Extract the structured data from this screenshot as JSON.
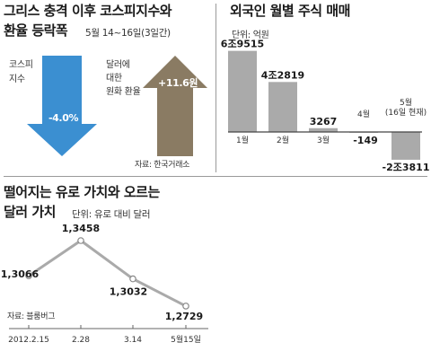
{
  "panel_a": {
    "title_line1": "그리스 충격 이후 코스피지수와",
    "title_line2": "환율 등락폭",
    "period": "5월 14~16일(3일간)",
    "left_label_line1": "코스피",
    "left_label_line2": "지수",
    "left_value": "-4.0%",
    "right_label_line1": "달러에",
    "right_label_line2": "대한",
    "right_label_line3": "원화 환율",
    "right_value": "+11.6원",
    "source": "자료: 한국거래소",
    "colors": {
      "down_arrow": "#3b8fd1",
      "up_arrow": "#8a7b63"
    }
  },
  "panel_b": {
    "title": "외국인 월별 주식 매매",
    "unit": "단위: 억원"
  },
  "panel_c": {
    "title_line1": "떨어지는 유로 가치와 오르는",
    "title_line2": "달러 가치",
    "unit": "단위: 유로 대비 달러",
    "source": "자료: 블룸버그"
  },
  "chart_data": [
    {
      "type": "bar",
      "title": "그리스 충격 이후 코스피지수와 환율 등락폭",
      "categories": [
        "코스피 지수",
        "달러에 대한 원화 환율"
      ],
      "values": [
        -4.0,
        11.6
      ],
      "value_labels": [
        "-4.0%",
        "+11.6원"
      ]
    },
    {
      "type": "bar",
      "title": "외국인 월별 주식 매매",
      "ylabel": "단위: 억원",
      "categories": [
        "1월",
        "2월",
        "3월",
        "4월",
        "5월\n(16일 현재)"
      ],
      "values": [
        69515,
        42819,
        3267,
        -149,
        -23811
      ],
      "value_labels": [
        "6조9515",
        "4조2819",
        "3267",
        "-149",
        "-2조3811"
      ],
      "colors": {
        "bar": "#aaaaaa",
        "baseline": "#444444"
      }
    },
    {
      "type": "line",
      "title": "떨어지는 유로 가치와 오르는 달러 가치",
      "ylabel": "단위: 유로 대비 달러",
      "x": [
        "2012.2.15",
        "2.28",
        "3.14",
        "5월15일"
      ],
      "values": [
        1.3066,
        1.3458,
        1.3032,
        1.2729
      ],
      "value_labels": [
        "1,3066",
        "1,3458",
        "1,3032",
        "1,2729"
      ],
      "colors": {
        "line": "#aaaaaa",
        "marker_fill": "#ffffff",
        "marker_stroke": "#888888"
      }
    }
  ]
}
